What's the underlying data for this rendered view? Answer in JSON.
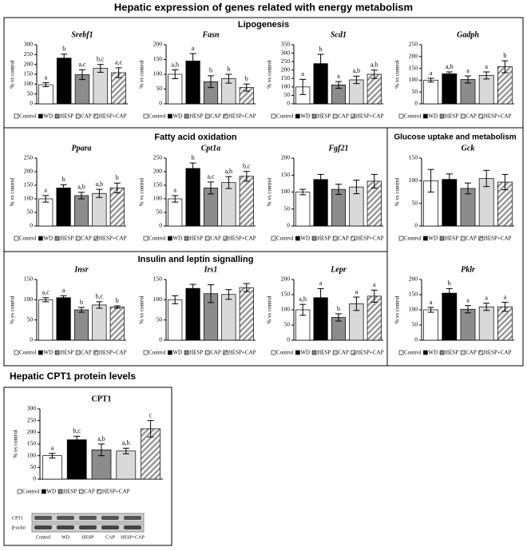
{
  "title": "Hepatic expression of genes related with energy metabolism",
  "sections": [
    "Lipogenesis",
    "Fatty acid oxidation",
    "Glucose uptake and metabolism",
    "Insulin and leptin signalling",
    "Hepatic CPT1 protein levels"
  ],
  "blot": {
    "rows": [
      "CPT1",
      "β-actin"
    ],
    "lanes": [
      "Control",
      "WD",
      "HESP",
      "CAP",
      "HESP+CAP"
    ]
  },
  "chart_data": [
    {
      "type": "bar",
      "title": "Srebf1",
      "title_italic": true,
      "ylabel": "% vs control",
      "categories": [
        "Control",
        "WD",
        "HESP",
        "CAP",
        "HESP+CAP"
      ],
      "values": [
        97,
        232,
        148,
        180,
        158
      ],
      "errors": [
        10,
        20,
        25,
        20,
        25
      ],
      "annotations": [
        "a",
        "b",
        "a,c",
        "b,c",
        "a,c"
      ],
      "colors": [
        "#ffffff",
        "#000000",
        "#8c8c8c",
        "#d9d9d9",
        "#a6a6a6"
      ],
      "hatch": [
        false,
        false,
        false,
        false,
        true
      ],
      "ylim": [
        0,
        300
      ],
      "yticks": [
        0,
        50,
        100,
        150,
        200,
        250,
        300
      ]
    },
    {
      "type": "bar",
      "title": "Fasn",
      "title_italic": true,
      "ylabel": "% vs control",
      "categories": [
        "Control",
        "WD",
        "HESP",
        "CAP",
        "HESP+CAP"
      ],
      "values": [
        100,
        145,
        75,
        85,
        55
      ],
      "errors": [
        15,
        25,
        20,
        15,
        12
      ],
      "annotations": [
        "a,b",
        "a",
        "b",
        "b",
        "b"
      ],
      "colors": [
        "#ffffff",
        "#000000",
        "#8c8c8c",
        "#d9d9d9",
        "#a6a6a6"
      ],
      "hatch": [
        false,
        false,
        false,
        false,
        true
      ],
      "ylim": [
        0,
        200
      ],
      "yticks": [
        0,
        50,
        100,
        150,
        200
      ]
    },
    {
      "type": "bar",
      "title": "Scd1",
      "title_italic": true,
      "ylabel": "% vs control",
      "categories": [
        "Control",
        "WD",
        "HESP",
        "CAP",
        "HESP+CAP"
      ],
      "values": [
        100,
        238,
        112,
        142,
        175
      ],
      "errors": [
        45,
        55,
        20,
        22,
        25
      ],
      "annotations": [
        "a",
        "b",
        "a",
        "a,b",
        "a,b"
      ],
      "colors": [
        "#ffffff",
        "#000000",
        "#8c8c8c",
        "#d9d9d9",
        "#a6a6a6"
      ],
      "hatch": [
        false,
        false,
        false,
        false,
        true
      ],
      "ylim": [
        0,
        350
      ],
      "yticks": [
        0,
        50,
        100,
        150,
        200,
        250,
        300,
        350
      ]
    },
    {
      "type": "bar",
      "title": "Gadph",
      "title_italic": true,
      "ylabel": "% vs control",
      "categories": [
        "Control",
        "WD",
        "HESP",
        "CAP",
        "HESP+CAP"
      ],
      "values": [
        100,
        127,
        103,
        120,
        157
      ],
      "errors": [
        8,
        8,
        15,
        15,
        25
      ],
      "annotations": [
        "a",
        "a,b",
        "a",
        "a",
        "b"
      ],
      "colors": [
        "#ffffff",
        "#000000",
        "#8c8c8c",
        "#d9d9d9",
        "#a6a6a6"
      ],
      "hatch": [
        false,
        false,
        false,
        false,
        true
      ],
      "ylim": [
        0,
        250
      ],
      "yticks": [
        0,
        50,
        100,
        150,
        200,
        250
      ]
    },
    {
      "type": "bar",
      "title": "Ppara",
      "title_italic": true,
      "ylabel": "% vs control",
      "categories": [
        "Control",
        "WD",
        "HESP",
        "CAP",
        "HESP+CAP"
      ],
      "values": [
        100,
        140,
        112,
        120,
        140
      ],
      "errors": [
        12,
        12,
        12,
        15,
        18
      ],
      "annotations": [
        "a",
        "b",
        "a,b",
        "a,b",
        "b"
      ],
      "colors": [
        "#ffffff",
        "#000000",
        "#8c8c8c",
        "#d9d9d9",
        "#a6a6a6"
      ],
      "hatch": [
        false,
        false,
        false,
        false,
        true
      ],
      "ylim": [
        0,
        250
      ],
      "yticks": [
        0,
        50,
        100,
        150,
        200,
        250
      ]
    },
    {
      "type": "bar",
      "title": "Cpt1a",
      "title_italic": true,
      "ylabel": "% vs control",
      "categories": [
        "Control",
        "WD",
        "HESP",
        "CAP",
        "HESP+CAP"
      ],
      "values": [
        100,
        212,
        140,
        160,
        183
      ],
      "errors": [
        12,
        20,
        22,
        22,
        18
      ],
      "annotations": [
        "a",
        "b",
        "a,c",
        "a,b",
        "b,c"
      ],
      "colors": [
        "#ffffff",
        "#000000",
        "#8c8c8c",
        "#d9d9d9",
        "#a6a6a6"
      ],
      "hatch": [
        false,
        false,
        false,
        false,
        true
      ],
      "ylim": [
        0,
        250
      ],
      "yticks": [
        0,
        50,
        100,
        150,
        200,
        250
      ]
    },
    {
      "type": "bar",
      "title": "Fgf21",
      "title_italic": true,
      "ylabel": "% vs control",
      "categories": [
        "Control",
        "WD",
        "HESP",
        "CAP",
        "HESP+CAP"
      ],
      "values": [
        100,
        137,
        108,
        115,
        132
      ],
      "errors": [
        8,
        15,
        15,
        20,
        20
      ],
      "colors": [
        "#ffffff",
        "#000000",
        "#8c8c8c",
        "#d9d9d9",
        "#a6a6a6"
      ],
      "hatch": [
        false,
        false,
        false,
        false,
        true
      ],
      "ylim": [
        0,
        200
      ],
      "yticks": [
        0,
        50,
        100,
        150,
        200
      ]
    },
    {
      "type": "bar",
      "title": "Gck",
      "title_italic": true,
      "ylabel": "% vs control",
      "categories": [
        "Control",
        "WD",
        "HESP",
        "CAP",
        "HESP+CAP"
      ],
      "values": [
        100,
        103,
        83,
        105,
        97
      ],
      "errors": [
        25,
        12,
        12,
        18,
        17
      ],
      "colors": [
        "#ffffff",
        "#000000",
        "#8c8c8c",
        "#d9d9d9",
        "#a6a6a6"
      ],
      "hatch": [
        false,
        false,
        false,
        false,
        true
      ],
      "ylim": [
        0,
        150
      ],
      "yticks": [
        0,
        50,
        100,
        150
      ]
    },
    {
      "type": "bar",
      "title": "Insr",
      "title_italic": true,
      "ylabel": "% vs control",
      "categories": [
        "Control",
        "WD",
        "HESP",
        "CAP",
        "HESP+CAP"
      ],
      "values": [
        100,
        105,
        75,
        87,
        82
      ],
      "errors": [
        5,
        5,
        6,
        8,
        3
      ],
      "annotations": [
        "a,c",
        "a",
        "b",
        "b,c",
        "b"
      ],
      "colors": [
        "#ffffff",
        "#000000",
        "#8c8c8c",
        "#d9d9d9",
        "#a6a6a6"
      ],
      "hatch": [
        false,
        false,
        false,
        false,
        true
      ],
      "ylim": [
        0,
        150
      ],
      "yticks": [
        0,
        50,
        100,
        150
      ]
    },
    {
      "type": "bar",
      "title": "Irs1",
      "title_italic": true,
      "ylabel": "% vs control",
      "categories": [
        "Control",
        "WD",
        "HESP",
        "CAP",
        "HESP+CAP"
      ],
      "values": [
        100,
        128,
        115,
        113,
        130
      ],
      "errors": [
        10,
        10,
        22,
        12,
        10
      ],
      "colors": [
        "#ffffff",
        "#000000",
        "#8c8c8c",
        "#d9d9d9",
        "#a6a6a6"
      ],
      "hatch": [
        false,
        false,
        false,
        false,
        true
      ],
      "ylim": [
        0,
        150
      ],
      "yticks": [
        0,
        50,
        100,
        150
      ]
    },
    {
      "type": "bar",
      "title": "Lepr",
      "title_italic": true,
      "ylabel": "% vs control",
      "categories": [
        "Control",
        "WD",
        "HESP",
        "CAP",
        "HESP+CAP"
      ],
      "values": [
        100,
        140,
        75,
        120,
        145
      ],
      "errors": [
        18,
        30,
        12,
        22,
        20
      ],
      "annotations": [
        "a,b",
        "a",
        "b",
        "a",
        "a"
      ],
      "colors": [
        "#ffffff",
        "#000000",
        "#8c8c8c",
        "#d9d9d9",
        "#a6a6a6"
      ],
      "hatch": [
        false,
        false,
        false,
        false,
        true
      ],
      "ylim": [
        0,
        200
      ],
      "yticks": [
        0,
        50,
        100,
        150,
        200
      ]
    },
    {
      "type": "bar",
      "title": "Pklr",
      "title_italic": true,
      "ylabel": "% vs control",
      "categories": [
        "Control",
        "WD",
        "HESP",
        "CAP",
        "HESP+CAP"
      ],
      "values": [
        100,
        155,
        102,
        110,
        110
      ],
      "errors": [
        8,
        15,
        12,
        12,
        15
      ],
      "annotations": [
        "a",
        "b",
        "a",
        "a",
        "a"
      ],
      "colors": [
        "#ffffff",
        "#000000",
        "#8c8c8c",
        "#d9d9d9",
        "#a6a6a6"
      ],
      "hatch": [
        false,
        false,
        false,
        false,
        true
      ],
      "ylim": [
        0,
        200
      ],
      "yticks": [
        0,
        50,
        100,
        150,
        200
      ]
    },
    {
      "type": "bar",
      "title": "CPT1",
      "title_italic": false,
      "ylabel": "% vs control",
      "categories": [
        "Control",
        "WD",
        "HESP",
        "CAP",
        "HESP+CAP"
      ],
      "values": [
        100,
        168,
        125,
        120,
        215
      ],
      "errors": [
        10,
        15,
        25,
        12,
        35
      ],
      "annotations": [
        "a",
        "b,c",
        "a,b",
        "a,b",
        "c"
      ],
      "colors": [
        "#ffffff",
        "#000000",
        "#8c8c8c",
        "#d9d9d9",
        "#a6a6a6"
      ],
      "hatch": [
        false,
        false,
        false,
        false,
        true
      ],
      "ylim": [
        0,
        300
      ],
      "yticks": [
        0,
        50,
        100,
        150,
        200,
        250,
        300
      ]
    }
  ]
}
